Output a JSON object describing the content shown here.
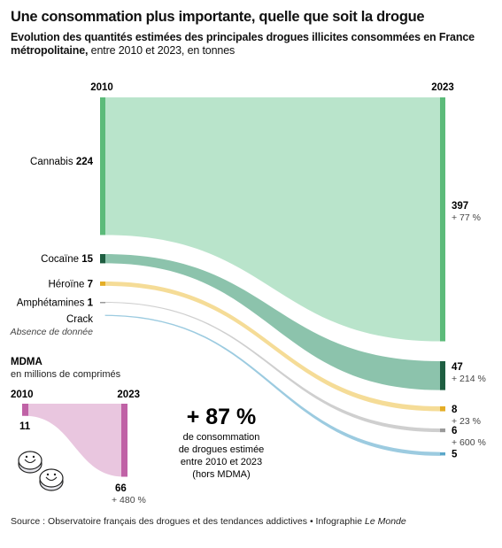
{
  "header": {
    "title": "Une consommation plus importante, quelle que soit la drogue",
    "subtitle_bold": "Evolution des quantités estimées des principales drogues illicites consommées en France métropolitaine,",
    "subtitle_light": " entre 2010 et 2023, en tonnes"
  },
  "chart_data": [
    {
      "type": "sankey-slope",
      "unit": "tonnes",
      "x": [
        "2010",
        "2023"
      ],
      "series": [
        {
          "name": "Cannabis",
          "values": [
            224,
            397
          ],
          "change": "+ 77 %",
          "color": "#b9e4cb",
          "bar_color": "#5cbb7a"
        },
        {
          "name": "Cocaïne",
          "values": [
            15,
            47
          ],
          "change": "+ 214 %",
          "color": "#8cc3ac",
          "bar_color": "#1e5e41"
        },
        {
          "name": "Héroïne",
          "values": [
            7,
            8
          ],
          "change": "+ 23 %",
          "color": "#f5dc97",
          "bar_color": "#e4ad26"
        },
        {
          "name": "Amphétamines",
          "values": [
            1,
            6
          ],
          "change": "+ 600 %",
          "color": "#cfcfcf",
          "bar_color": "#9a9a9a"
        },
        {
          "name": "Crack",
          "values": [
            null,
            5
          ],
          "change": "",
          "note": "Absence de donnée",
          "color": "#9ccbe0",
          "bar_color": "#5ba7c9"
        }
      ]
    },
    {
      "type": "sankey-slope",
      "title": "MDMA",
      "subtitle": "en millions de comprimés",
      "x": [
        "2010",
        "2023"
      ],
      "series": [
        {
          "name": "MDMA",
          "values": [
            11,
            66
          ],
          "change": "+ 480 %",
          "color": "#e9c6df",
          "bar_color": "#c062a6"
        }
      ]
    }
  ],
  "callout": {
    "big": "+ 87 %",
    "text1": "de consommation",
    "text2": "de drogues estimée",
    "text3": "entre 2010 et 2023",
    "text4": "(hors MDMA)"
  },
  "footer": {
    "source": "Source : Observatoire français des drogues et des tendances addictives",
    "credit": "• Infographie ",
    "credit_italic": "Le Monde"
  }
}
